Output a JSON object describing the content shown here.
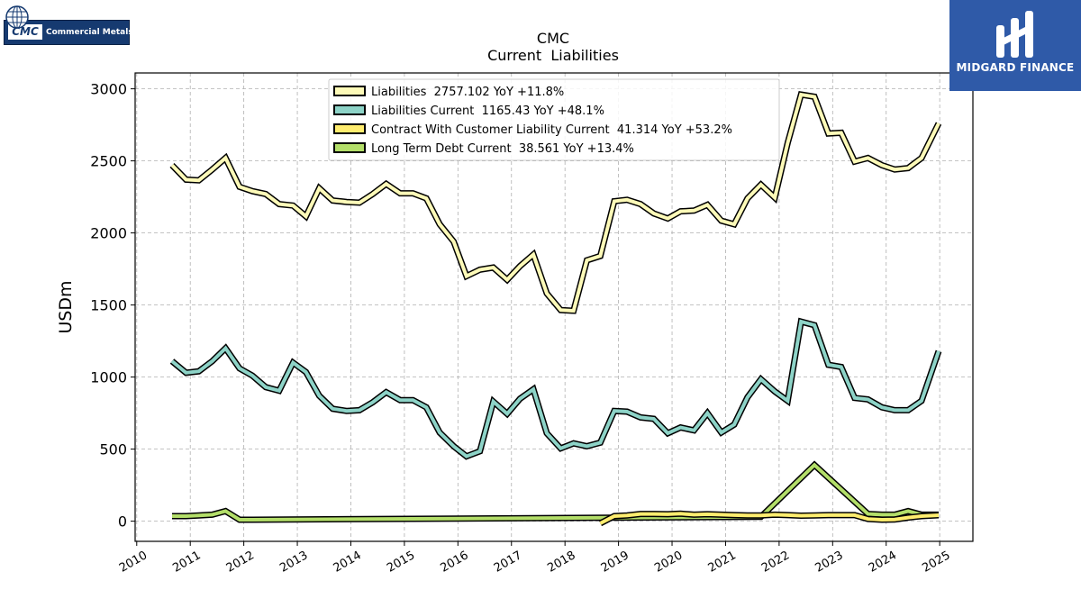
{
  "branding": {
    "cmc_tag": "CMC",
    "cmc_name": "Commercial Metals",
    "partner_name": "MIDGARD FINANCE"
  },
  "colors": {
    "liabilities": "#fdfab8",
    "liabilities_current": "#8dd3c7",
    "contract_liability": "#ffed6f",
    "long_term_debt": "#b3de69",
    "midgard_bg": "#2f5aa8",
    "cmc_bg": "#163a70"
  },
  "chart_data": {
    "type": "line",
    "title": "CMC",
    "subtitle": "Current  Liabilities",
    "xlabel": "",
    "ylabel": "USDm",
    "xlim": [
      2009.97,
      2025.62
    ],
    "ylim": [
      -140,
      3110
    ],
    "yticks": [
      0,
      500,
      1000,
      1500,
      2000,
      2500,
      3000
    ],
    "xticks": [
      "2010",
      "2011",
      "2012",
      "2013",
      "2014",
      "2015",
      "2016",
      "2017",
      "2018",
      "2019",
      "2020",
      "2021",
      "2022",
      "2023",
      "2024",
      "2025"
    ],
    "grid": true,
    "legend_position": "top-center",
    "series": [
      {
        "name": "Liabilities  2757.102 YoY +11.8%",
        "color_key": "liabilities",
        "points": [
          [
            2010.66,
            2470
          ],
          [
            2010.92,
            2370
          ],
          [
            2011.16,
            2365
          ],
          [
            2011.41,
            2440
          ],
          [
            2011.66,
            2520
          ],
          [
            2011.92,
            2320
          ],
          [
            2012.16,
            2290
          ],
          [
            2012.41,
            2270
          ],
          [
            2012.66,
            2200
          ],
          [
            2012.92,
            2190
          ],
          [
            2013.16,
            2115
          ],
          [
            2013.41,
            2310
          ],
          [
            2013.66,
            2225
          ],
          [
            2013.92,
            2215
          ],
          [
            2014.16,
            2210
          ],
          [
            2014.41,
            2270
          ],
          [
            2014.66,
            2340
          ],
          [
            2014.92,
            2275
          ],
          [
            2015.16,
            2275
          ],
          [
            2015.41,
            2240
          ],
          [
            2015.66,
            2060
          ],
          [
            2015.92,
            1940
          ],
          [
            2016.16,
            1700
          ],
          [
            2016.41,
            1745
          ],
          [
            2016.66,
            1760
          ],
          [
            2016.92,
            1675
          ],
          [
            2017.16,
            1770
          ],
          [
            2017.41,
            1850
          ],
          [
            2017.66,
            1580
          ],
          [
            2017.92,
            1465
          ],
          [
            2018.16,
            1460
          ],
          [
            2018.41,
            1810
          ],
          [
            2018.66,
            1840
          ],
          [
            2018.92,
            2220
          ],
          [
            2019.16,
            2230
          ],
          [
            2019.41,
            2200
          ],
          [
            2019.66,
            2135
          ],
          [
            2019.92,
            2100
          ],
          [
            2020.16,
            2150
          ],
          [
            2020.41,
            2155
          ],
          [
            2020.66,
            2195
          ],
          [
            2020.92,
            2085
          ],
          [
            2021.16,
            2060
          ],
          [
            2021.41,
            2240
          ],
          [
            2021.66,
            2335
          ],
          [
            2021.92,
            2245
          ],
          [
            2022.16,
            2625
          ],
          [
            2022.41,
            2960
          ],
          [
            2022.66,
            2945
          ],
          [
            2022.92,
            2690
          ],
          [
            2023.16,
            2695
          ],
          [
            2023.41,
            2495
          ],
          [
            2023.66,
            2520
          ],
          [
            2023.92,
            2470
          ],
          [
            2024.16,
            2440
          ],
          [
            2024.41,
            2450
          ],
          [
            2024.66,
            2520
          ],
          [
            2024.98,
            2760
          ]
        ]
      },
      {
        "name": "Liabilities Current  1165.43 YoY +48.1%",
        "color_key": "liabilities_current",
        "points": [
          [
            2010.66,
            1110
          ],
          [
            2010.92,
            1030
          ],
          [
            2011.16,
            1040
          ],
          [
            2011.41,
            1110
          ],
          [
            2011.66,
            1200
          ],
          [
            2011.92,
            1060
          ],
          [
            2012.16,
            1010
          ],
          [
            2012.41,
            930
          ],
          [
            2012.66,
            905
          ],
          [
            2012.92,
            1100
          ],
          [
            2013.16,
            1035
          ],
          [
            2013.41,
            870
          ],
          [
            2013.66,
            780
          ],
          [
            2013.92,
            765
          ],
          [
            2014.16,
            770
          ],
          [
            2014.41,
            825
          ],
          [
            2014.66,
            895
          ],
          [
            2014.92,
            840
          ],
          [
            2015.16,
            840
          ],
          [
            2015.41,
            790
          ],
          [
            2015.66,
            615
          ],
          [
            2015.92,
            520
          ],
          [
            2016.16,
            450
          ],
          [
            2016.41,
            485
          ],
          [
            2016.66,
            830
          ],
          [
            2016.92,
            745
          ],
          [
            2017.16,
            850
          ],
          [
            2017.41,
            915
          ],
          [
            2017.66,
            610
          ],
          [
            2017.92,
            505
          ],
          [
            2018.16,
            540
          ],
          [
            2018.41,
            520
          ],
          [
            2018.66,
            545
          ],
          [
            2018.92,
            765
          ],
          [
            2019.16,
            760
          ],
          [
            2019.41,
            720
          ],
          [
            2019.66,
            710
          ],
          [
            2019.92,
            610
          ],
          [
            2020.16,
            650
          ],
          [
            2020.41,
            630
          ],
          [
            2020.66,
            750
          ],
          [
            2020.92,
            615
          ],
          [
            2021.16,
            670
          ],
          [
            2021.41,
            860
          ],
          [
            2021.66,
            985
          ],
          [
            2021.92,
            900
          ],
          [
            2022.16,
            835
          ],
          [
            2022.41,
            1385
          ],
          [
            2022.66,
            1360
          ],
          [
            2022.92,
            1085
          ],
          [
            2023.16,
            1070
          ],
          [
            2023.41,
            855
          ],
          [
            2023.66,
            845
          ],
          [
            2023.92,
            790
          ],
          [
            2024.16,
            770
          ],
          [
            2024.41,
            770
          ],
          [
            2024.66,
            835
          ],
          [
            2024.98,
            1180
          ]
        ]
      },
      {
        "name": "Contract With Customer Liability Current  41.314 YoY +53.2%",
        "color_key": "contract_liability",
        "points": [
          [
            2018.66,
            -15
          ],
          [
            2018.92,
            35
          ],
          [
            2019.16,
            40
          ],
          [
            2019.41,
            50
          ],
          [
            2019.66,
            50
          ],
          [
            2019.92,
            48
          ],
          [
            2020.16,
            52
          ],
          [
            2020.41,
            45
          ],
          [
            2020.66,
            48
          ],
          [
            2020.92,
            45
          ],
          [
            2021.16,
            42
          ],
          [
            2021.41,
            40
          ],
          [
            2021.66,
            40
          ],
          [
            2021.92,
            45
          ],
          [
            2022.16,
            42
          ],
          [
            2022.41,
            38
          ],
          [
            2022.66,
            40
          ],
          [
            2022.92,
            42
          ],
          [
            2023.16,
            42
          ],
          [
            2023.41,
            42
          ],
          [
            2023.66,
            15
          ],
          [
            2023.92,
            10
          ],
          [
            2024.16,
            12
          ],
          [
            2024.41,
            25
          ],
          [
            2024.66,
            35
          ],
          [
            2024.98,
            41
          ]
        ]
      },
      {
        "name": "Long Term Debt Current  38.561 YoY +13.4%",
        "color_key": "long_term_debt",
        "points": [
          [
            2010.66,
            35
          ],
          [
            2010.92,
            35
          ],
          [
            2011.16,
            40
          ],
          [
            2011.41,
            45
          ],
          [
            2011.66,
            70
          ],
          [
            2011.92,
            10
          ],
          [
            2012.16,
            10
          ],
          [
            2021.66,
            30
          ],
          [
            2022.66,
            390
          ],
          [
            2023.66,
            50
          ],
          [
            2023.92,
            45
          ],
          [
            2024.16,
            45
          ],
          [
            2024.41,
            70
          ],
          [
            2024.66,
            45
          ],
          [
            2024.98,
            45
          ]
        ]
      }
    ]
  }
}
